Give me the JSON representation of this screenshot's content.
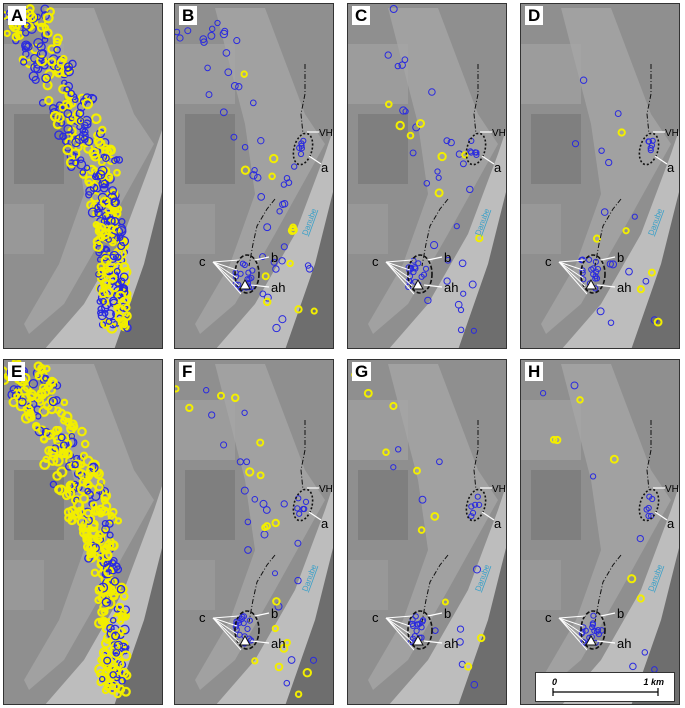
{
  "panels": [
    {
      "label": "A",
      "variant": "dense-blue"
    },
    {
      "label": "B",
      "variant": "sparse",
      "annotations": true
    },
    {
      "label": "C",
      "variant": "sparse",
      "annotations": true
    },
    {
      "label": "D",
      "variant": "sparse",
      "annotations": true
    },
    {
      "label": "E",
      "variant": "dense-yellow"
    },
    {
      "label": "F",
      "variant": "sparse",
      "annotations": true
    },
    {
      "label": "G",
      "variant": "sparse",
      "annotations": true
    },
    {
      "label": "H",
      "variant": "sparse",
      "annotations": true
    }
  ],
  "annotations": {
    "vh": "VH",
    "a": "a",
    "b": "b",
    "c": "c",
    "ah": "ah",
    "river": "Danube"
  },
  "scale": {
    "zero": "0",
    "end": "1 km"
  },
  "colors": {
    "blue": "#2a2adf",
    "yellow": "#f2ee00",
    "aerial": "#8f8f8f",
    "river": "#bdbdbd"
  }
}
